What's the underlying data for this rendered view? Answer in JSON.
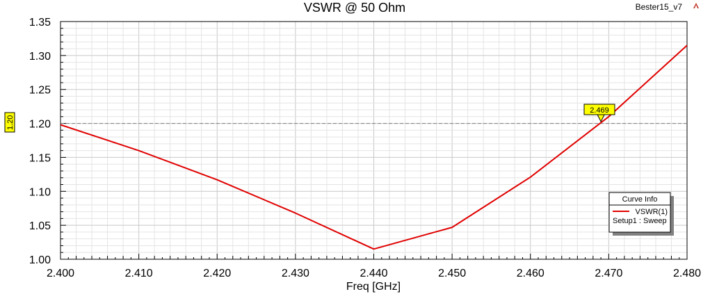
{
  "header": {
    "title": "VSWR @ 50 Ohm",
    "project": "Bester15_v7"
  },
  "legend": {
    "heading": "Curve Info",
    "series_label": "VSWR(1)",
    "setup_label": "Setup1 : Sweep"
  },
  "markers": {
    "horizontal_label": "1.20",
    "vertical_label": "2.469"
  },
  "chart_data": {
    "type": "line",
    "title": "VSWR @ 50 Ohm",
    "xlabel": "Freq [GHz]",
    "ylabel": "",
    "xlim": [
      2.4,
      2.48
    ],
    "ylim": [
      1.0,
      1.35
    ],
    "x_ticks": [
      "2.400",
      "2.410",
      "2.420",
      "2.430",
      "2.440",
      "2.450",
      "2.460",
      "2.470",
      "2.480"
    ],
    "y_ticks": [
      "1.00",
      "1.05",
      "1.10",
      "1.15",
      "1.20",
      "1.25",
      "1.30",
      "1.35"
    ],
    "grid": true,
    "legend_position": "right",
    "series": [
      {
        "name": "VSWR(1)",
        "color": "#e00000",
        "x": [
          2.4,
          2.41,
          2.42,
          2.43,
          2.44,
          2.45,
          2.46,
          2.47,
          2.48
        ],
        "y": [
          1.198,
          1.16,
          1.117,
          1.068,
          1.015,
          1.047,
          1.121,
          1.21,
          1.315
        ]
      }
    ],
    "reference_line": {
      "y": 1.2,
      "color": "#808080"
    },
    "marker": {
      "x": 2.469,
      "label": "2.469"
    }
  },
  "colors": {
    "marker_fill": "#ffff00",
    "curve": "#e00000",
    "grid": "#d8d8d8",
    "icon": "#c0392b"
  }
}
